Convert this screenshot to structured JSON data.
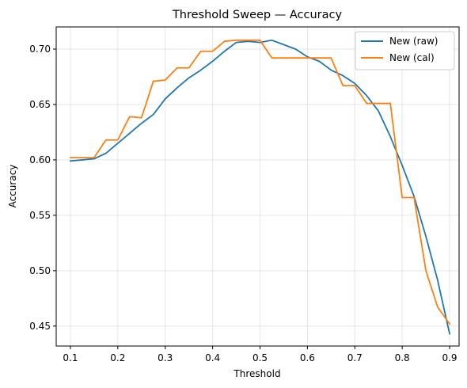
{
  "chart_data": {
    "type": "line",
    "title": "Threshold Sweep — Accuracy",
    "xlabel": "Threshold",
    "ylabel": "Accuracy",
    "xlim": [
      0.07,
      0.92
    ],
    "ylim": [
      0.432,
      0.72
    ],
    "x_ticks": [
      0.1,
      0.2,
      0.3,
      0.4,
      0.5,
      0.6,
      0.7,
      0.8,
      0.9
    ],
    "x_tick_labels": [
      "0.1",
      "0.2",
      "0.3",
      "0.4",
      "0.5",
      "0.6",
      "0.7",
      "0.8",
      "0.9"
    ],
    "y_ticks": [
      0.45,
      0.5,
      0.55,
      0.6,
      0.65,
      0.7
    ],
    "y_tick_labels": [
      "0.45",
      "0.50",
      "0.55",
      "0.60",
      "0.65",
      "0.70"
    ],
    "grid": true,
    "legend_position": "top-right",
    "x": [
      0.1,
      0.125,
      0.15,
      0.175,
      0.2,
      0.225,
      0.25,
      0.275,
      0.3,
      0.325,
      0.35,
      0.375,
      0.4,
      0.425,
      0.45,
      0.475,
      0.5,
      0.525,
      0.55,
      0.575,
      0.6,
      0.625,
      0.65,
      0.675,
      0.7,
      0.725,
      0.75,
      0.775,
      0.8,
      0.825,
      0.85,
      0.875,
      0.9
    ],
    "series": [
      {
        "name": "New (raw)",
        "color": "#1f77b4",
        "values": [
          0.599,
          0.6,
          0.601,
          0.606,
          0.615,
          0.624,
          0.633,
          0.641,
          0.655,
          0.665,
          0.674,
          0.681,
          0.689,
          0.698,
          0.706,
          0.707,
          0.706,
          0.708,
          0.704,
          0.7,
          0.693,
          0.689,
          0.681,
          0.676,
          0.669,
          0.658,
          0.644,
          0.621,
          0.595,
          0.567,
          0.531,
          0.491,
          0.443
        ]
      },
      {
        "name": "New (cal)",
        "color": "#ff7f0e",
        "values": [
          0.602,
          0.602,
          0.602,
          0.618,
          0.618,
          0.639,
          0.638,
          0.671,
          0.672,
          0.683,
          0.683,
          0.698,
          0.698,
          0.707,
          0.708,
          0.708,
          0.708,
          0.692,
          0.692,
          0.692,
          0.692,
          0.692,
          0.692,
          0.667,
          0.667,
          0.651,
          0.651,
          0.651,
          0.566,
          0.566,
          0.5,
          0.467,
          0.452
        ]
      }
    ]
  }
}
